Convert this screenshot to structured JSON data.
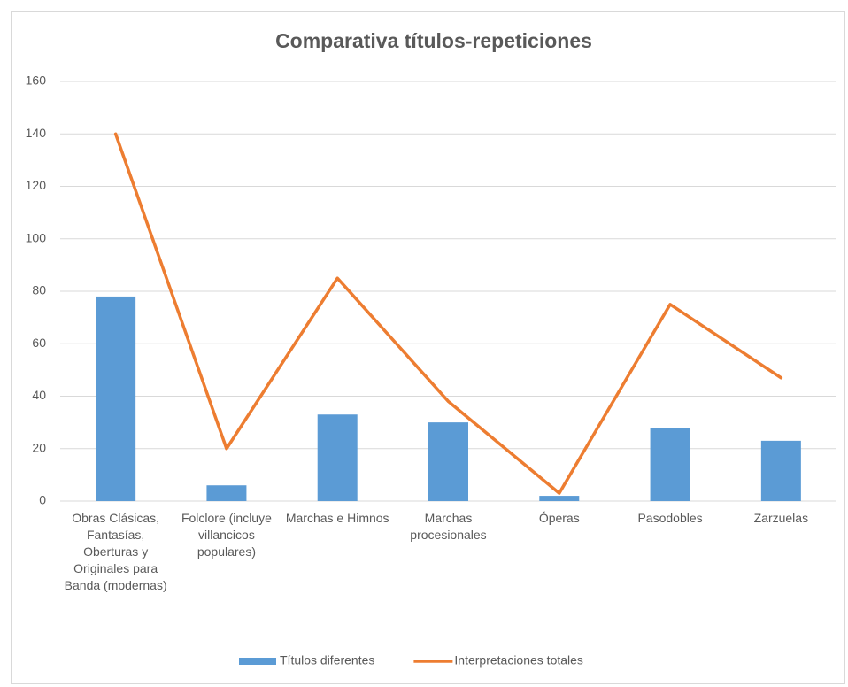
{
  "chart_data": {
    "type": "combo",
    "title": "Comparativa títulos-repeticiones",
    "categories": [
      "Obras Clásicas, Fantasías, Oberturas y Originales para Banda (modernas)",
      "Folclore (incluye villancicos populares)",
      "Marchas e Himnos",
      "Marchas procesionales",
      "Óperas",
      "Pasodobles",
      "Zarzuelas"
    ],
    "series": [
      {
        "name": "Títulos diferentes",
        "type": "bar",
        "color": "#5b9bd5",
        "values": [
          78,
          6,
          33,
          30,
          2,
          28,
          23
        ]
      },
      {
        "name": "Interpretaciones totales",
        "type": "line",
        "color": "#ed7d31",
        "values": [
          140,
          20,
          85,
          38,
          3,
          75,
          47
        ]
      }
    ],
    "ylim": [
      0,
      160
    ],
    "yticks": [
      0,
      20,
      40,
      60,
      80,
      100,
      120,
      140,
      160
    ],
    "grid": true,
    "legend": "bottom"
  }
}
